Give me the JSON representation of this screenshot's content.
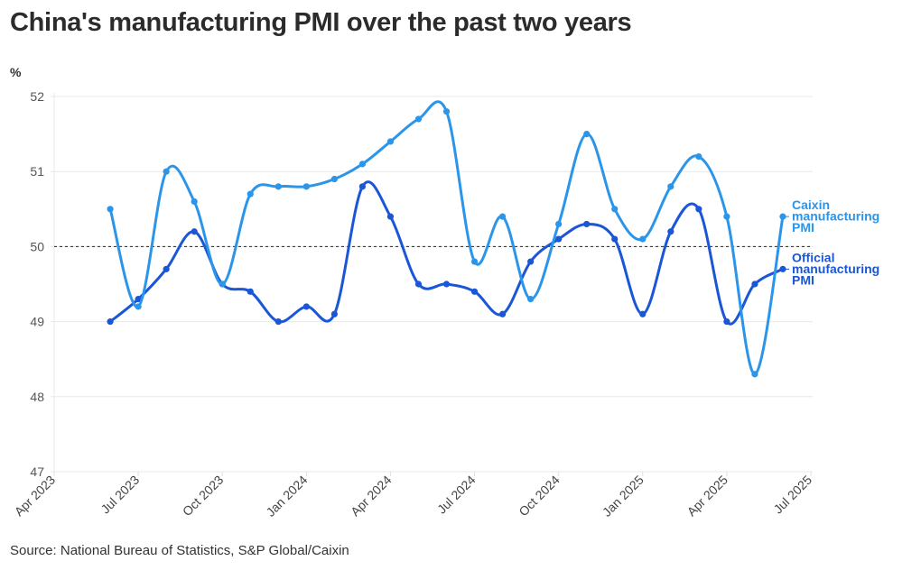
{
  "title": "China's manufacturing PMI over the past two years",
  "source": "Source: National Bureau of Statistics, S&P Global/Caixin",
  "chart_data": {
    "type": "line",
    "title": "China's manufacturing PMI over the past two years",
    "ylabel": "%",
    "xlabel": "",
    "ylim": [
      47,
      52
    ],
    "yticks": [
      "52",
      "51",
      "50",
      "49",
      "48",
      "47"
    ],
    "ytick_values": [
      52,
      51,
      50,
      49,
      48,
      47
    ],
    "xticks": [
      "Apr 2023",
      "Jul 2023",
      "Oct 2023",
      "Jan 2024",
      "Apr 2024",
      "Jul 2024",
      "Oct 2024",
      "Jan 2025",
      "Apr 2025",
      "Jul 2025"
    ],
    "x_range_months": [
      0,
      27
    ],
    "x": [
      "Jun 2023",
      "Jul 2023",
      "Aug 2023",
      "Sep 2023",
      "Oct 2023",
      "Nov 2023",
      "Dec 2023",
      "Jan 2024",
      "Feb 2024",
      "Mar 2024",
      "Apr 2024",
      "May 2024",
      "Jun 2024",
      "Jul 2024",
      "Aug 2024",
      "Sep 2024",
      "Oct 2024",
      "Nov 2024",
      "Dec 2024",
      "Jan 2025",
      "Feb 2025",
      "Mar 2025",
      "Apr 2025",
      "May 2025",
      "Jun 2025"
    ],
    "reference_line": 50,
    "grid": true,
    "legend_placement": "right (direct labels at line ends)",
    "series": [
      {
        "name": "Caixin manufacturing PMI",
        "label_lines": [
          "Caixin",
          "manufacturing",
          "PMI"
        ],
        "color": "#2b95e9",
        "values": [
          50.5,
          49.2,
          51.0,
          50.6,
          49.5,
          50.7,
          50.8,
          50.8,
          50.9,
          51.1,
          51.4,
          51.7,
          51.8,
          49.8,
          50.4,
          49.3,
          50.3,
          51.5,
          50.5,
          50.1,
          50.8,
          51.2,
          50.4,
          48.3,
          50.4
        ]
      },
      {
        "name": "Official manufacturing PMI",
        "label_lines": [
          "Official",
          "manufacturing",
          "PMI"
        ],
        "color": "#1a56d6",
        "values": [
          49.0,
          49.3,
          49.7,
          50.2,
          49.5,
          49.4,
          49.0,
          49.2,
          49.1,
          50.8,
          50.4,
          49.5,
          49.5,
          49.4,
          49.1,
          49.8,
          50.1,
          50.3,
          50.1,
          49.1,
          50.2,
          50.5,
          49.0,
          49.5,
          49.7
        ]
      }
    ]
  }
}
